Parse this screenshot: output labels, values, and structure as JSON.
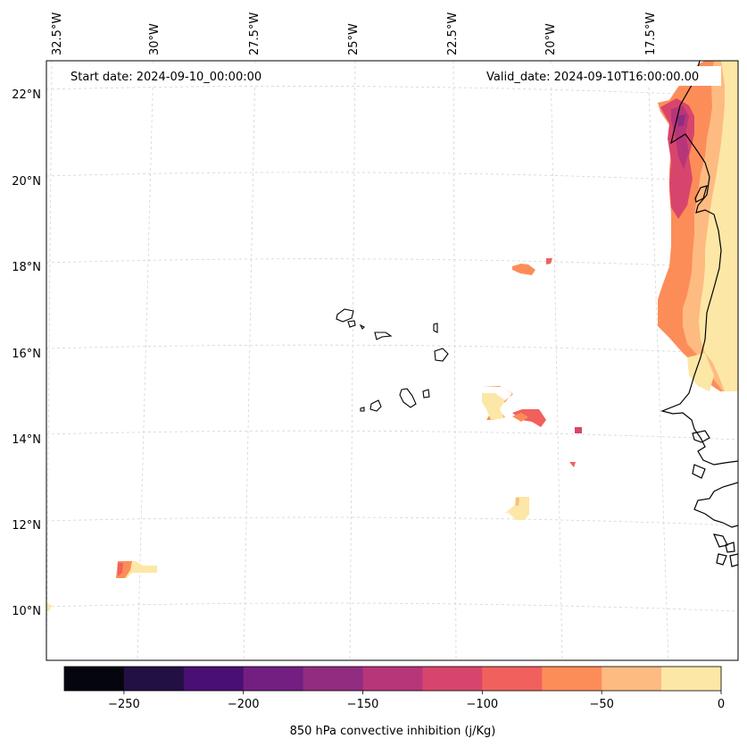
{
  "map": {
    "start_date": "Start date: 2024-09-10_00:00:00",
    "valid_date": "Valid_date: 2024-09-10T16:00:00.00",
    "lon_labels": [
      "32.5°W",
      "30°W",
      "27.5°W",
      "25°W",
      "22.5°W",
      "20°W",
      "17.5°W"
    ],
    "lat_labels": [
      "22°N",
      "20°N",
      "18°N",
      "16°N",
      "14°N",
      "12°N",
      "10°N"
    ],
    "coastline_color": "#000000",
    "gridline_color": "#cccccc"
  },
  "colorbar": {
    "label": "850 hPa convective inhibition (j/Kg)",
    "tick_labels": [
      "−250",
      "−200",
      "−150",
      "−100",
      "−50",
      "0"
    ],
    "bins": [
      -275,
      -250,
      -225,
      -200,
      -175,
      -150,
      -125,
      -100,
      -75,
      -50,
      -25,
      0
    ],
    "colors": [
      "#05050f",
      "#221043",
      "#4a0f72",
      "#721f81",
      "#912c80",
      "#b63679",
      "#d8456c",
      "#f1605d",
      "#fc8d59",
      "#febb81",
      "#fde7a6"
    ]
  }
}
